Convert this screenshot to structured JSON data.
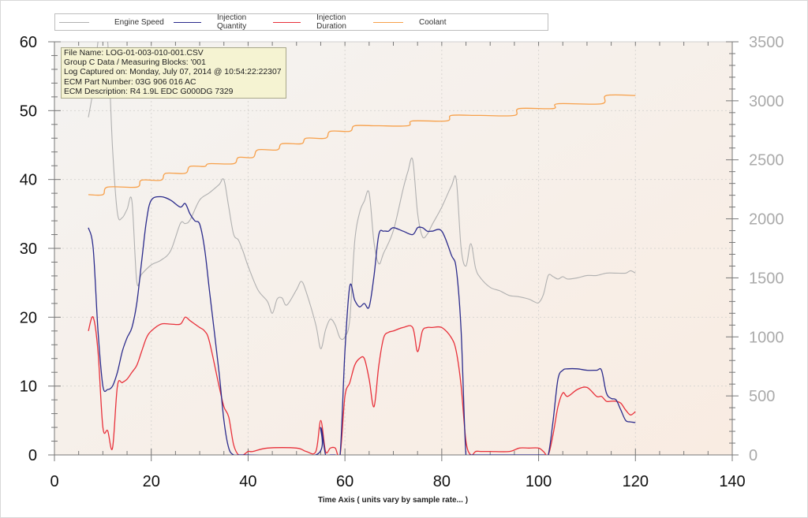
{
  "chart_data": {
    "type": "line",
    "title": "",
    "xlabel": "Time Axis ( units vary by sample rate... )",
    "ylabel_left": "",
    "ylabel_right": "",
    "xlim": [
      0,
      140
    ],
    "ylim_left": [
      0,
      60
    ],
    "ylim_right": [
      0,
      3500
    ],
    "x_ticks": [
      "0",
      "20",
      "40",
      "60",
      "80",
      "100",
      "120",
      "140"
    ],
    "y_ticks_left": [
      "0",
      "10",
      "20",
      "30",
      "40",
      "50",
      "60"
    ],
    "y_ticks_right": [
      "0",
      "500",
      "1000",
      "1500",
      "2000",
      "2500",
      "3000",
      "3500"
    ],
    "grid": true,
    "legend_position": "top",
    "series": [
      {
        "name": "Engine Speed",
        "axis": "right",
        "color": "#b0b0b0",
        "x": [
          7,
          8,
          9,
          10,
          11,
          12,
          13,
          14,
          15,
          16,
          17,
          18,
          20,
          22,
          24,
          26,
          27,
          28,
          30,
          32,
          34,
          35,
          36,
          37,
          38,
          39,
          40,
          42,
          44,
          45,
          46,
          47,
          48,
          50,
          51,
          52,
          54,
          55,
          56,
          57,
          58,
          59,
          60,
          61,
          62,
          63,
          64,
          65,
          66,
          67,
          68,
          70,
          72,
          73,
          74,
          75,
          76,
          77,
          78,
          80,
          82,
          83,
          84,
          85,
          86,
          87,
          88,
          90,
          92,
          94,
          96,
          98,
          99,
          100,
          101,
          102,
          103,
          104,
          105,
          106,
          108,
          110,
          112,
          114,
          116,
          118,
          119,
          120
        ],
        "values": [
          2860,
          3100,
          3500,
          3600,
          3500,
          2600,
          2050,
          2010,
          2080,
          2150,
          1470,
          1530,
          1610,
          1650,
          1730,
          1960,
          1960,
          1990,
          2160,
          2220,
          2290,
          2330,
          2100,
          1870,
          1820,
          1720,
          1600,
          1400,
          1300,
          1200,
          1320,
          1330,
          1270,
          1400,
          1470,
          1380,
          1100,
          900,
          1060,
          1150,
          1100,
          990,
          1000,
          1150,
          1800,
          2050,
          2150,
          2220,
          1800,
          1620,
          1710,
          1900,
          2250,
          2400,
          2500,
          2050,
          1850,
          1870,
          1950,
          2100,
          2280,
          2330,
          1750,
          1600,
          1790,
          1580,
          1500,
          1420,
          1390,
          1350,
          1340,
          1320,
          1300,
          1290,
          1360,
          1520,
          1510,
          1490,
          1510,
          1490,
          1500,
          1520,
          1520,
          1540,
          1540,
          1540,
          1560,
          1540
        ]
      },
      {
        "name": "Injection Quantity",
        "axis": "left",
        "color": "#2b2b8c",
        "x": [
          7,
          8,
          9,
          10,
          11,
          12,
          13,
          14,
          15,
          16,
          17,
          18,
          19,
          20,
          22,
          24,
          26,
          27,
          28,
          29,
          30,
          31,
          32,
          34,
          35,
          36,
          37,
          38,
          39,
          40,
          54,
          55,
          56,
          57,
          58,
          59,
          60,
          61,
          62,
          63,
          64,
          65,
          66,
          67,
          68,
          69,
          70,
          72,
          74,
          75,
          76,
          77,
          78,
          80,
          82,
          83,
          84,
          85,
          86,
          87,
          100,
          101,
          102,
          103,
          104,
          105,
          106,
          108,
          110,
          112,
          113,
          114,
          115,
          116,
          117,
          118,
          119,
          120
        ],
        "values": [
          33,
          30,
          18,
          10,
          9.5,
          10,
          12,
          15,
          17,
          18.5,
          22,
          28,
          34,
          37,
          37.5,
          37,
          36,
          36.5,
          35,
          34,
          33.5,
          30,
          24,
          12,
          5,
          1,
          0,
          0,
          0,
          0,
          0,
          4,
          0,
          0,
          0,
          0,
          15,
          24.5,
          22.5,
          21.5,
          22,
          21.5,
          26,
          32,
          32.5,
          32.5,
          33,
          32.5,
          32,
          33,
          33,
          32.5,
          32.5,
          32.5,
          29,
          27,
          18,
          0,
          0,
          0,
          0,
          0,
          0,
          5,
          11,
          12.3,
          12.5,
          12.5,
          12.3,
          12.3,
          12.3,
          9,
          8.2,
          8,
          6.5,
          5,
          4.8,
          4.7
        ]
      },
      {
        "name": "Injection Duration",
        "axis": "left",
        "color": "#e8303a",
        "x": [
          7,
          8,
          9,
          10,
          11,
          12,
          13,
          14,
          15,
          16,
          17,
          18,
          19,
          20,
          22,
          24,
          26,
          27,
          28,
          29,
          30,
          31,
          32,
          34,
          35,
          36,
          37,
          38,
          39,
          40,
          41,
          44,
          50,
          52,
          54,
          55,
          56,
          57,
          58,
          59,
          60,
          61,
          62,
          63,
          64,
          65,
          66,
          67,
          68,
          69,
          70,
          72,
          74,
          75,
          76,
          77,
          78,
          80,
          82,
          83,
          84,
          85,
          86,
          87,
          88,
          90,
          94,
          96,
          98,
          100,
          101,
          102,
          103,
          104,
          105,
          106,
          108,
          110,
          112,
          113,
          114,
          115,
          116,
          117,
          118,
          119,
          120
        ],
        "values": [
          18,
          20,
          15,
          4,
          3.5,
          1,
          10,
          10.5,
          11,
          12,
          13,
          15,
          17,
          18,
          19,
          19,
          19,
          20,
          19.5,
          19,
          18.5,
          18,
          16.5,
          10,
          7,
          5.5,
          1.5,
          0,
          0,
          0.5,
          0.5,
          1,
          1,
          0.5,
          0.5,
          5,
          0.5,
          1,
          1,
          0,
          8.5,
          10.5,
          13,
          14,
          14,
          11,
          7,
          13,
          17,
          17.8,
          18,
          18.5,
          18.5,
          15,
          18,
          18.5,
          18.5,
          18.5,
          17,
          15,
          10,
          2,
          0,
          0.5,
          0.5,
          0.5,
          0.5,
          1,
          1,
          1,
          0.5,
          0,
          3,
          7,
          9,
          8.5,
          9.5,
          9.8,
          8.5,
          8.5,
          7.8,
          7.8,
          7.8,
          7.5,
          6.5,
          5.8,
          6.3
        ]
      },
      {
        "name": "Coolant",
        "axis": "left",
        "color": "#f7a04a",
        "x": [
          7,
          10,
          11,
          17,
          18,
          22,
          23,
          27,
          28,
          31,
          32,
          37,
          38,
          41,
          42,
          46,
          47,
          51,
          52,
          56,
          57,
          61,
          62,
          66,
          67,
          73,
          74,
          81,
          82,
          87,
          88,
          95,
          96,
          103,
          104,
          113,
          114,
          120
        ],
        "values": [
          37.8,
          37.8,
          38.9,
          38.9,
          39.9,
          39.9,
          40.9,
          40.9,
          41.9,
          41.9,
          42.3,
          42.3,
          43.2,
          43.2,
          44.3,
          44.3,
          45.2,
          45.2,
          46.0,
          46.0,
          47.0,
          47.0,
          47.8,
          47.8,
          47.8,
          47.8,
          48.5,
          48.5,
          49.3,
          49.3,
          49.3,
          49.3,
          50.3,
          50.3,
          51.0,
          51.0,
          52.2,
          52.2
        ]
      }
    ]
  },
  "legend": {
    "items": [
      {
        "label": "Engine Speed",
        "color": "#b0b0b0"
      },
      {
        "label": "Injection Quantity",
        "color": "#2b2b8c"
      },
      {
        "label": "Injection Duration",
        "color": "#e8303a"
      },
      {
        "label": "Coolant",
        "color": "#f7a04a"
      }
    ]
  },
  "info_box": {
    "lines": [
      "File Name: LOG-01-003-010-001.CSV",
      "Group C Data / Measuring Blocks: '001",
      "Log Captured on: Monday, July 07, 2014 @ 10:54:22:22307",
      "ECM Part Number: 03G 906 016 AC",
      "ECM Description: R4 1.9L EDC G000DG  7329"
    ]
  },
  "axes": {
    "x_title": "Time Axis ( units vary by sample rate... )"
  },
  "colors": {
    "plot_bg_start": "#f4f3f1",
    "plot_bg_end": "#f8ede4",
    "grid": "#d9d6d2",
    "axis": "#777777"
  }
}
